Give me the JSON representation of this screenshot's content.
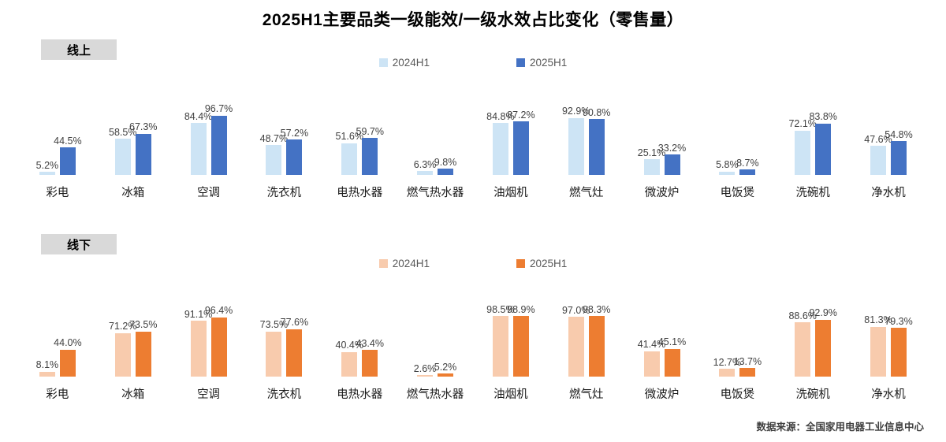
{
  "title": "2025H1主要品类一级能效/一级水效占比变化（零售量）",
  "source": "数据来源：全国家用电器工业信息中心",
  "sections": [
    {
      "id": "online",
      "badge": "线上",
      "legend": [
        {
          "label": "2024H1",
          "color": "#CDE4F5"
        },
        {
          "label": "2025H1",
          "color": "#4472C4"
        }
      ]
    },
    {
      "id": "offline",
      "badge": "线下",
      "legend": [
        {
          "label": "2024H1",
          "color": "#F8CBAD"
        },
        {
          "label": "2025H1",
          "color": "#ED7D31"
        }
      ]
    }
  ],
  "chart_data": [
    {
      "type": "bar",
      "title": "线上",
      "categories": [
        "彩电",
        "冰箱",
        "空调",
        "洗衣机",
        "电热水器",
        "燃气热水器",
        "油烟机",
        "燃气灶",
        "微波炉",
        "电饭煲",
        "洗碗机",
        "净水机"
      ],
      "series": [
        {
          "name": "2024H1",
          "color": "#CDE4F5",
          "values": [
            5.2,
            58.5,
            84.4,
            48.7,
            51.6,
            6.3,
            84.8,
            92.9,
            25.1,
            5.8,
            72.1,
            47.6
          ]
        },
        {
          "name": "2025H1",
          "color": "#4472C4",
          "values": [
            44.5,
            67.3,
            96.7,
            57.2,
            59.7,
            9.8,
            87.2,
            90.8,
            33.2,
            8.7,
            83.8,
            54.8
          ]
        }
      ],
      "value_suffix": "%",
      "ylim": [
        0,
        100
      ],
      "grid": false,
      "legend_position": "top",
      "data_labels": "outside-end"
    },
    {
      "type": "bar",
      "title": "线下",
      "categories": [
        "彩电",
        "冰箱",
        "空调",
        "洗衣机",
        "电热水器",
        "燃气热水器",
        "油烟机",
        "燃气灶",
        "微波炉",
        "电饭煲",
        "洗碗机",
        "净水机"
      ],
      "series": [
        {
          "name": "2024H1",
          "color": "#F8CBAD",
          "values": [
            8.1,
            71.2,
            91.1,
            73.5,
            40.4,
            2.6,
            98.5,
            97.0,
            41.4,
            12.7,
            88.6,
            81.3
          ]
        },
        {
          "name": "2025H1",
          "color": "#ED7D31",
          "values": [
            44.0,
            73.5,
            96.4,
            77.6,
            43.4,
            5.2,
            98.9,
            98.3,
            45.1,
            13.7,
            92.9,
            79.3
          ]
        }
      ],
      "value_suffix": "%",
      "ylim": [
        0,
        100
      ],
      "grid": false,
      "legend_position": "top",
      "data_labels": "outside-end"
    }
  ]
}
